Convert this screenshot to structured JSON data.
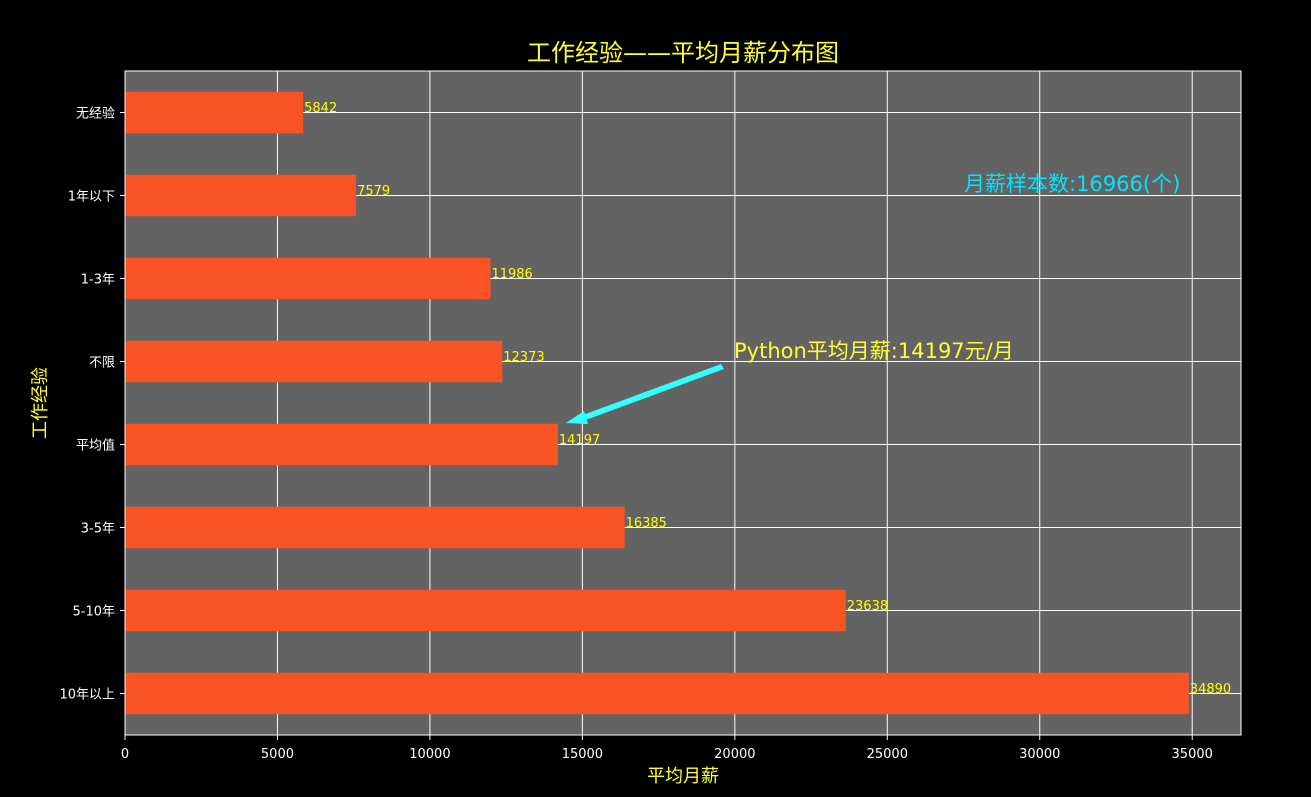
{
  "chart_data": {
    "type": "bar",
    "orientation": "horizontal",
    "title": "工作经验——平均月薪分布图",
    "xlabel": "平均月薪",
    "ylabel": "工作经验",
    "categories": [
      "无经验",
      "1年以下",
      "1-3年",
      "不限",
      "平均值",
      "3-5年",
      "5-10年",
      "10年以上"
    ],
    "values": [
      5842,
      7579,
      11986,
      12373,
      14197,
      16385,
      23638,
      34890
    ],
    "value_labels": [
      "5842",
      "7579",
      "11986",
      "12373",
      "14197",
      "16385",
      "23638",
      "34890"
    ],
    "xlim": [
      0,
      36600
    ],
    "xticks": [
      0,
      5000,
      10000,
      15000,
      20000,
      25000,
      30000,
      35000
    ],
    "xtick_labels": [
      "0",
      "5000",
      "10000",
      "15000",
      "20000",
      "25000",
      "30000",
      "35000"
    ],
    "grid": true,
    "annotations": [
      {
        "text": "Python平均月薪:14197元/月",
        "target_category": "平均值",
        "target_value": 14197,
        "arrow": true
      },
      {
        "text": "月薪样本数:16966(个)"
      }
    ]
  },
  "colors": {
    "background": "#000000",
    "plot_background": "#636363",
    "bar": "#fa5426",
    "grid": "#ffffff",
    "title": "#ffff33",
    "data_label": "#ffff00",
    "arrow": "#33ffff",
    "sample_text": "#00e5ff"
  }
}
